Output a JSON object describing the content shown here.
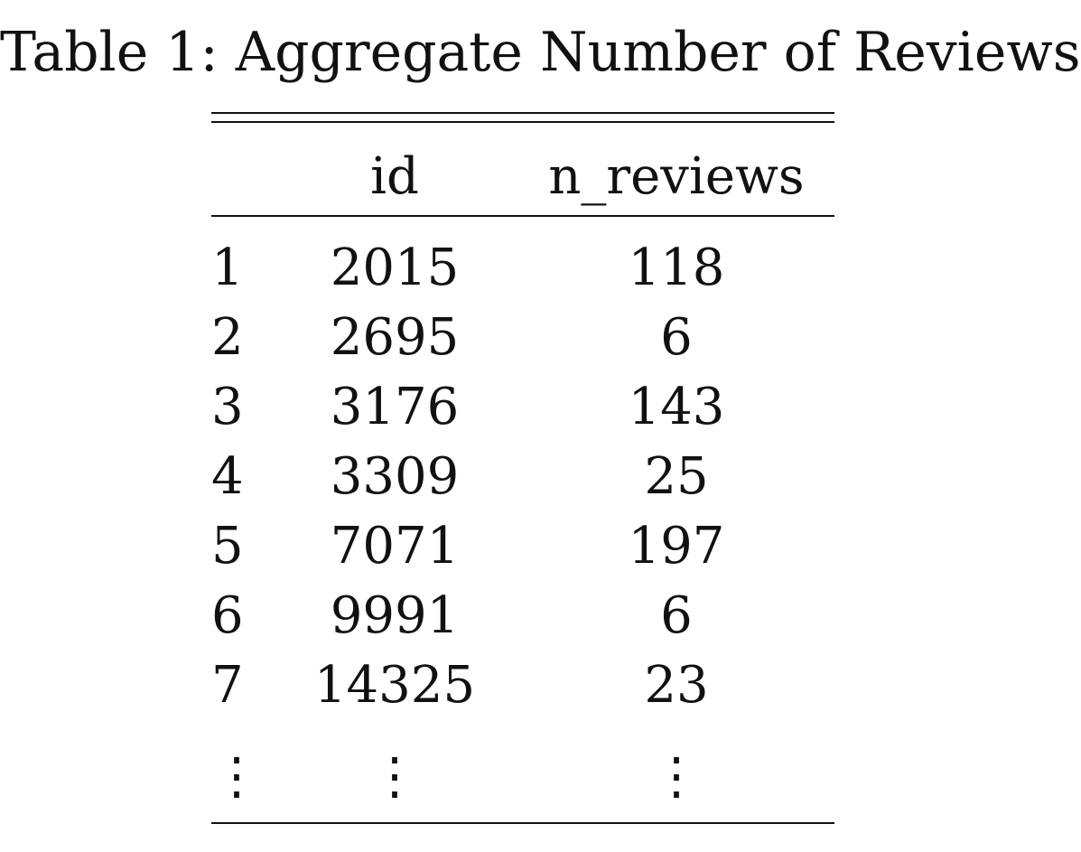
{
  "table": {
    "caption": "Table 1: Aggregate Number of Reviews",
    "header": {
      "index": "",
      "id": "id",
      "n_reviews": "n_reviews"
    },
    "rows": [
      {
        "index": "1",
        "id": "2015",
        "n_reviews": "118"
      },
      {
        "index": "2",
        "id": "2695",
        "n_reviews": "6"
      },
      {
        "index": "3",
        "id": "3176",
        "n_reviews": "143"
      },
      {
        "index": "4",
        "id": "3309",
        "n_reviews": "25"
      },
      {
        "index": "5",
        "id": "7071",
        "n_reviews": "197"
      },
      {
        "index": "6",
        "id": "9991",
        "n_reviews": "6"
      },
      {
        "index": "7",
        "id": "14325",
        "n_reviews": "23"
      },
      {
        "index": "⋮",
        "id": "⋮",
        "n_reviews": "⋮"
      }
    ]
  }
}
